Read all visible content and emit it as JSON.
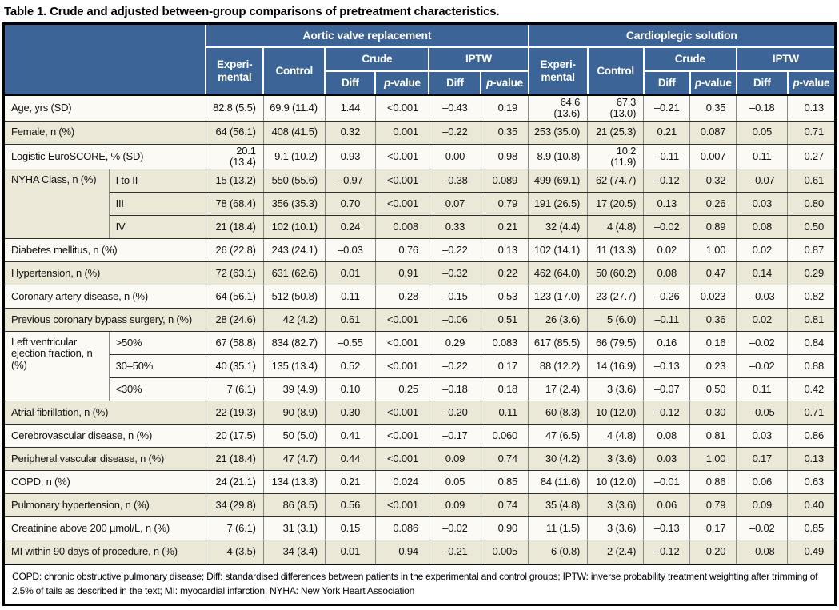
{
  "title": "Table 1. Crude and adjusted between-group comparisons of pretreatment characteristics.",
  "header": {
    "avr_group": "Aortic valve replacement",
    "cs_group": "Cardioplegic solution",
    "experimental": "Experi-mental",
    "control": "Control",
    "crude": "Crude",
    "iptw": "IPTW",
    "diff": "Diff",
    "p_italic": "p",
    "p_suffix": "-value"
  },
  "colors": {
    "header_blue": "#3c6496",
    "row_beige": "#ece8d7",
    "row_white": "#fbfaf5",
    "border_black": "#000000"
  },
  "rows": [
    {
      "label": "Age, yrs (SD)",
      "shade": false,
      "values": [
        "82.8 (5.5)",
        "69.9 (11.4)",
        "1.44",
        "<0.001",
        "–0.43",
        "0.19",
        "64.6 (13.6)",
        "67.3 (13.0)",
        "–0.21",
        "0.35",
        "–0.18",
        "0.13"
      ]
    },
    {
      "label": "Female, n (%)",
      "shade": true,
      "values": [
        "64 (56.1)",
        "408 (41.5)",
        "0.32",
        "0.001",
        "–0.22",
        "0.35",
        "253 (35.0)",
        "21 (25.3)",
        "0.21",
        "0.087",
        "0.05",
        "0.71"
      ]
    },
    {
      "label": "Logistic EuroSCORE, % (SD)",
      "shade": false,
      "values": [
        "20.1 (13.4)",
        "9.1 (10.2)",
        "0.93",
        "<0.001",
        "0.00",
        "0.98",
        "8.9 (10.8)",
        "10.2 (11.9)",
        "–0.11",
        "0.007",
        "0.11",
        "0.27"
      ]
    },
    {
      "label": "NYHA Class, n (%)",
      "rowspan": 3,
      "sublabel": "I to II",
      "shade": true,
      "values": [
        "15 (13.2)",
        "550 (55.6)",
        "–0.97",
        "<0.001",
        "–0.38",
        "0.089",
        "499 (69.1)",
        "62 (74.7)",
        "–0.12",
        "0.32",
        "–0.07",
        "0.61"
      ]
    },
    {
      "sublabel": "III",
      "shade": true,
      "values": [
        "78 (68.4)",
        "356 (35.3)",
        "0.70",
        "<0.001",
        "0.07",
        "0.79",
        "191 (26.5)",
        "17 (20.5)",
        "0.13",
        "0.26",
        "0.03",
        "0.80"
      ]
    },
    {
      "sublabel": "IV",
      "shade": true,
      "values": [
        "21 (18.4)",
        "102 (10.1)",
        "0.24",
        "0.008",
        "0.33",
        "0.21",
        "32 (4.4)",
        "4 (4.8)",
        "–0.02",
        "0.89",
        "0.08",
        "0.50"
      ]
    },
    {
      "label": "Diabetes mellitus, n (%)",
      "shade": false,
      "values": [
        "26 (22.8)",
        "243 (24.1)",
        "–0.03",
        "0.76",
        "–0.22",
        "0.13",
        "102 (14.1)",
        "11 (13.3)",
        "0.02",
        "1.00",
        "0.02",
        "0.87"
      ]
    },
    {
      "label": "Hypertension, n (%)",
      "shade": true,
      "values": [
        "72 (63.1)",
        "631 (62.6)",
        "0.01",
        "0.91",
        "–0.32",
        "0.22",
        "462 (64.0)",
        "50 (60.2)",
        "0.08",
        "0.47",
        "0.14",
        "0.29"
      ]
    },
    {
      "label": "Coronary artery disease, n (%)",
      "shade": false,
      "values": [
        "64 (56.1)",
        "512 (50.8)",
        "0.11",
        "0.28",
        "–0.15",
        "0.53",
        "123 (17.0)",
        "23 (27.7)",
        "–0.26",
        "0.023",
        "–0.03",
        "0.82"
      ]
    },
    {
      "label": "Previous coronary bypass surgery, n (%)",
      "shade": true,
      "values": [
        "28 (24.6)",
        "42 (4.2)",
        "0.61",
        "<0.001",
        "–0.06",
        "0.51",
        "26 (3.6)",
        "5 (6.0)",
        "–0.11",
        "0.36",
        "0.02",
        "0.81"
      ]
    },
    {
      "label": "Left ventricular ejection fraction, n (%)",
      "rowspan": 3,
      "sublabel": ">50%",
      "shade": false,
      "values": [
        "67 (58.8)",
        "834 (82.7)",
        "–0.55",
        "<0.001",
        "0.29",
        "0.083",
        "617 (85.5)",
        "66 (79.5)",
        "0.16",
        "0.16",
        "–0.02",
        "0.84"
      ]
    },
    {
      "sublabel": "30–50%",
      "shade": false,
      "values": [
        "40 (35.1)",
        "135 (13.4)",
        "0.52",
        "<0.001",
        "–0.22",
        "0.17",
        "88 (12.2)",
        "14 (16.9)",
        "–0.13",
        "0.23",
        "–0.02",
        "0.88"
      ]
    },
    {
      "sublabel": "<30%",
      "shade": false,
      "values": [
        "7 (6.1)",
        "39 (4.9)",
        "0.10",
        "0.25",
        "–0.18",
        "0.18",
        "17 (2.4)",
        "3 (3.6)",
        "–0.07",
        "0.50",
        "0.11",
        "0.42"
      ]
    },
    {
      "label": "Atrial fibrillation, n (%)",
      "shade": true,
      "values": [
        "22 (19.3)",
        "90 (8.9)",
        "0.30",
        "<0.001",
        "–0.20",
        "0.11",
        "60 (8.3)",
        "10 (12.0)",
        "–0.12",
        "0.30",
        "–0.05",
        "0.71"
      ]
    },
    {
      "label": "Cerebrovascular disease, n (%)",
      "shade": false,
      "values": [
        "20 (17.5)",
        "50 (5.0)",
        "0.41",
        "<0.001",
        "–0.17",
        "0.060",
        "47 (6.5)",
        "4 (4.8)",
        "0.08",
        "0.81",
        "0.03",
        "0.86"
      ]
    },
    {
      "label": "Peripheral vascular disease, n (%)",
      "shade": true,
      "values": [
        "21 (18.4)",
        "47 (4.7)",
        "0.44",
        "<0.001",
        "0.09",
        "0.74",
        "30 (4.2)",
        "3 (3.6)",
        "0.03",
        "1.00",
        "0.17",
        "0.13"
      ]
    },
    {
      "label": "COPD, n (%)",
      "shade": false,
      "values": [
        "24 (21.1)",
        "134 (13.3)",
        "0.21",
        "0.024",
        "0.05",
        "0.85",
        "84 (11.6)",
        "10 (12.0)",
        "–0.01",
        "0.86",
        "0.06",
        "0.63"
      ]
    },
    {
      "label": "Pulmonary hypertension, n (%)",
      "shade": true,
      "values": [
        "34 (29.8)",
        "86 (8.5)",
        "0.56",
        "<0.001",
        "0.09",
        "0.74",
        "35 (4.8)",
        "3 (3.6)",
        "0.06",
        "0.79",
        "0.09",
        "0.40"
      ]
    },
    {
      "label": "Creatinine above 200 µmol/L, n (%)",
      "shade": false,
      "values": [
        "7 (6.1)",
        "31 (3.1)",
        "0.15",
        "0.086",
        "–0.02",
        "0.90",
        "11 (1.5)",
        "3 (3.6)",
        "–0.13",
        "0.17",
        "–0.02",
        "0.85"
      ]
    },
    {
      "label": "MI within 90 days of procedure, n (%)",
      "shade": true,
      "values": [
        "4 (3.5)",
        "34 (3.4)",
        "0.01",
        "0.94",
        "–0.21",
        "0.005",
        "6 (0.8)",
        "2 (2.4)",
        "–0.12",
        "0.20",
        "–0.08",
        "0.49"
      ]
    }
  ],
  "footnote": "COPD: chronic obstructive pulmonary disease; Diff: standardised differences between patients in the experimental and control groups; IPTW: inverse probability treatment weighting after trimming of 2.5% of tails as described in the text; MI: myocardial infarction; NYHA: New York Heart Association"
}
